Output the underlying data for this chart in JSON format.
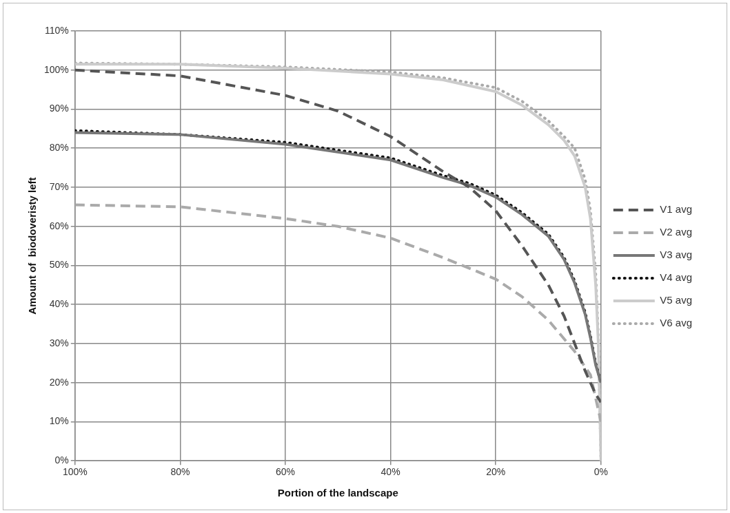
{
  "chart_data": {
    "type": "line",
    "xlabel": "Portion of the landscape",
    "ylabel": "Amount of  biodoveristy left",
    "xlim": [
      100,
      0
    ],
    "xticks": [
      {
        "value": 100,
        "label": "100%"
      },
      {
        "value": 80,
        "label": "80%"
      },
      {
        "value": 60,
        "label": "60%"
      },
      {
        "value": 40,
        "label": "40%"
      },
      {
        "value": 20,
        "label": "20%"
      },
      {
        "value": 0,
        "label": "0%"
      }
    ],
    "ylim": [
      0,
      110
    ],
    "yticks": [
      {
        "value": 0,
        "label": "0%"
      },
      {
        "value": 10,
        "label": "10%"
      },
      {
        "value": 20,
        "label": "20%"
      },
      {
        "value": 30,
        "label": "30%"
      },
      {
        "value": 40,
        "label": "40%"
      },
      {
        "value": 50,
        "label": "50%"
      },
      {
        "value": 60,
        "label": "60%"
      },
      {
        "value": 70,
        "label": "70%"
      },
      {
        "value": 80,
        "label": "80%"
      },
      {
        "value": 90,
        "label": "90%"
      },
      {
        "value": 100,
        "label": "100%"
      },
      {
        "value": 110,
        "label": "110%"
      }
    ],
    "grid": true,
    "legend": "right",
    "marker": "none",
    "series": [
      {
        "name": "V1 avg",
        "color": "#555555",
        "line_style": "dashed",
        "x": [
          100,
          80,
          60,
          50,
          40,
          30,
          25,
          20,
          15,
          10,
          7,
          5,
          3,
          1,
          0
        ],
        "values": [
          100,
          98.5,
          93.5,
          89.5,
          83,
          74,
          70,
          64,
          55,
          45,
          37,
          30,
          23,
          17,
          15
        ]
      },
      {
        "name": "V2 avg",
        "color": "#aaaaaa",
        "line_style": "dashed",
        "x": [
          100,
          80,
          60,
          50,
          40,
          30,
          20,
          15,
          10,
          5,
          2,
          0
        ],
        "values": [
          65.5,
          65,
          62,
          60,
          57,
          52,
          46.5,
          42,
          36,
          28,
          22,
          10
        ]
      },
      {
        "name": "V3 avg",
        "color": "#777777",
        "line_style": "solid",
        "x": [
          100,
          80,
          60,
          40,
          30,
          25,
          20,
          15,
          10,
          7,
          5,
          3,
          2,
          1,
          0
        ],
        "values": [
          84,
          83.5,
          81,
          77,
          72.5,
          70.5,
          67.5,
          63,
          57.5,
          51.5,
          45.5,
          37.5,
          31.5,
          24.5,
          20
        ]
      },
      {
        "name": "V4 avg",
        "color": "#111111",
        "line_style": "dotted",
        "x": [
          100,
          80,
          60,
          40,
          30,
          25,
          20,
          15,
          10,
          7,
          5,
          3,
          2,
          1,
          0
        ],
        "values": [
          84.5,
          83.5,
          81.5,
          77.5,
          73,
          71,
          68,
          63.5,
          58,
          52,
          46,
          38,
          32,
          25,
          20
        ]
      },
      {
        "name": "V5 avg",
        "color": "#cccccc",
        "line_style": "solid",
        "x": [
          100,
          80,
          60,
          40,
          30,
          20,
          15,
          10,
          7,
          5,
          3,
          2,
          1,
          0.5,
          0
        ],
        "values": [
          101.5,
          101.5,
          100.5,
          99,
          97.5,
          94.5,
          91,
          86,
          82,
          78,
          70,
          62,
          45,
          30,
          0
        ]
      },
      {
        "name": "V6 avg",
        "color": "#aaaaaa",
        "line_style": "dotted",
        "x": [
          100,
          80,
          60,
          40,
          30,
          20,
          15,
          10,
          7,
          5,
          3,
          2,
          1,
          0.5,
          0
        ],
        "values": [
          101.8,
          101.5,
          100.8,
          99.5,
          98,
          95.5,
          92,
          87,
          83,
          80,
          72,
          64,
          48,
          32,
          0
        ]
      }
    ]
  }
}
